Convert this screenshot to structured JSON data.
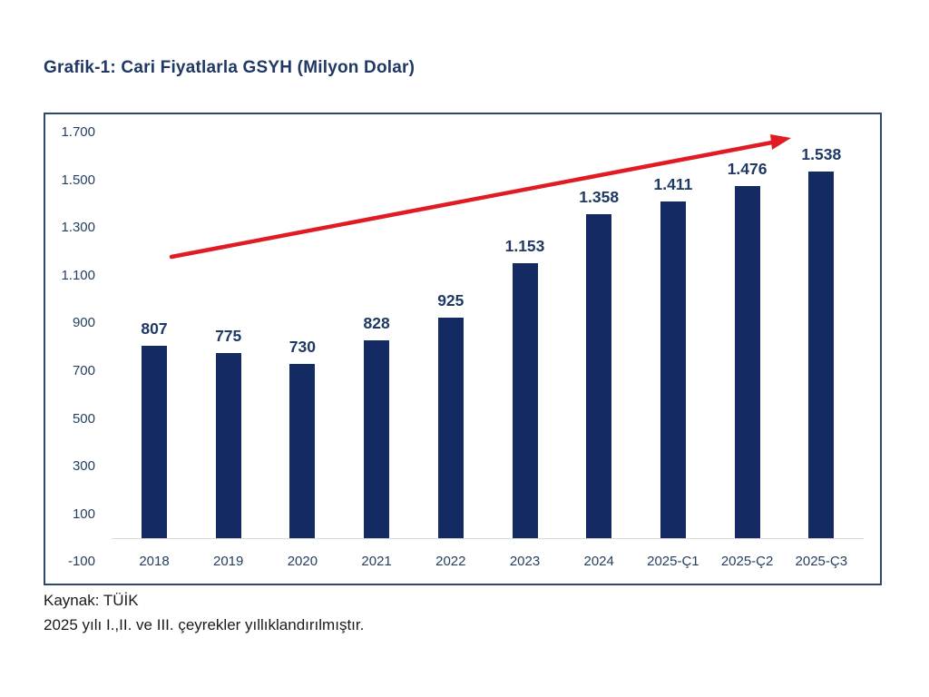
{
  "header": {
    "title": "Grafik-1: Cari Fiyatlarla GSYH (Milyon Dolar)"
  },
  "chart_data": {
    "type": "bar",
    "title": "Grafik-1: Cari Fiyatlarla GSYH (Milyon Dolar)",
    "categories": [
      "2018",
      "2019",
      "2020",
      "2021",
      "2022",
      "2023",
      "2024",
      "2025-Ç1",
      "2025-Ç2",
      "2025-Ç3"
    ],
    "values": [
      807,
      775,
      730,
      828,
      925,
      1153,
      1358,
      1411,
      1476,
      1538
    ],
    "value_labels": [
      "807",
      "775",
      "730",
      "828",
      "925",
      "1.153",
      "1.358",
      "1.411",
      "1.476",
      "1.538"
    ],
    "xlabel": "",
    "ylabel": "",
    "ylim": [
      -100,
      1700
    ],
    "y_ticks": [
      {
        "label": "1.700",
        "value": 1700
      },
      {
        "label": "1.500",
        "value": 1500
      },
      {
        "label": "1.300",
        "value": 1300
      },
      {
        "label": "1.100",
        "value": 1100
      },
      {
        "label": "900",
        "value": 900
      },
      {
        "label": "700",
        "value": 700
      },
      {
        "label": "500",
        "value": 500
      },
      {
        "label": "300",
        "value": 300
      },
      {
        "label": "100",
        "value": 100
      },
      {
        "label": "-100",
        "value": -100
      }
    ],
    "grid": false,
    "legend": null,
    "annotations": [
      {
        "type": "arrow",
        "description": "upward red trend arrow across bars",
        "color": "#e01b24"
      }
    ],
    "colors": {
      "bar": "#132a63",
      "value_label": "#1f3864",
      "tick_label": "#243f60",
      "box_border": "#2e4a68",
      "zero_baseline": "#d9d9d9",
      "arrow": "#e01b24"
    }
  },
  "footer": {
    "source": "Kaynak: TÜİK",
    "note": "2025 yılı I.,II. ve III. çeyrekler yıllıklandırılmıştır."
  }
}
